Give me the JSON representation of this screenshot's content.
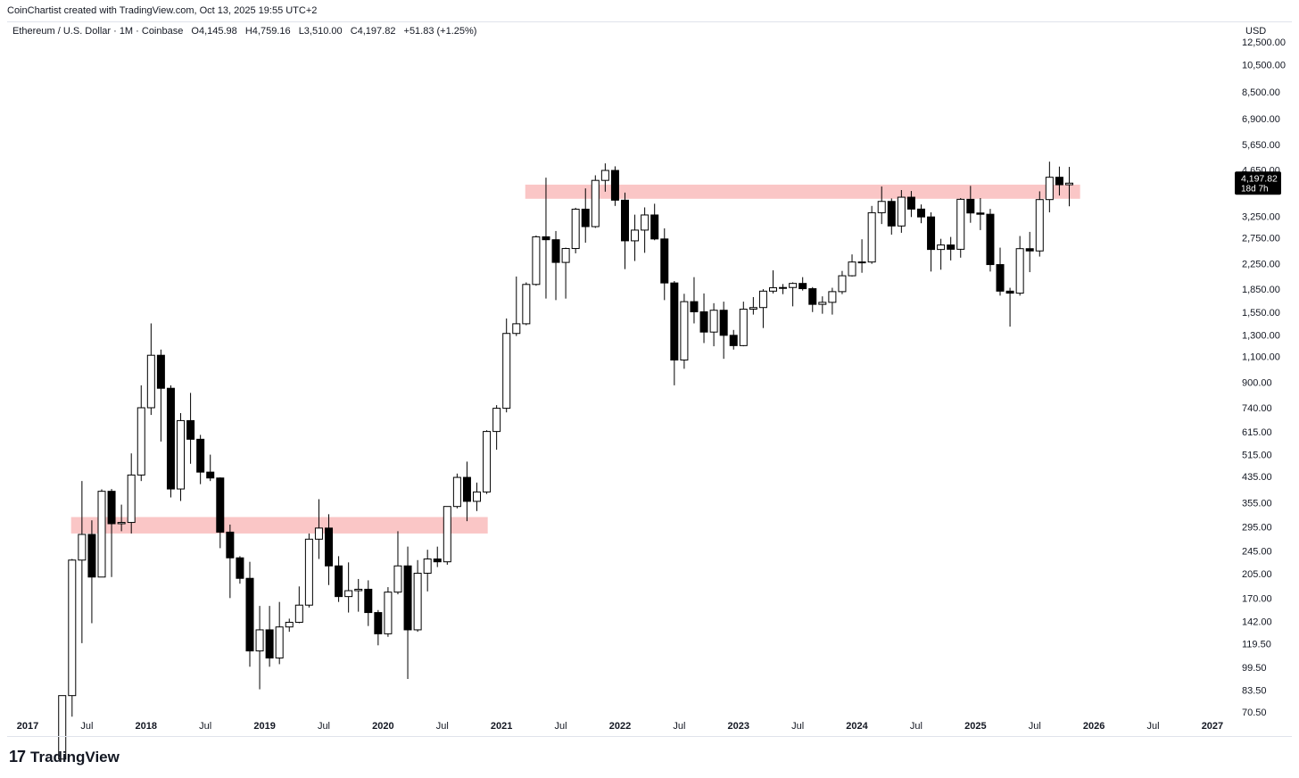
{
  "header": {
    "credit": "CoinChartist created with TradingView.com, Oct 13, 2025 19:55 UTC+2"
  },
  "symbol": {
    "name": "Ethereum / U.S. Dollar · 1M · Coinbase",
    "open": "O4,145.98",
    "high": "H4,759.16",
    "low": "L3,510.00",
    "close": "C4,197.82",
    "change": "+51.83 (+1.25%)"
  },
  "currency": "USD",
  "last_price": {
    "value": "4,197.82",
    "countdown": "18d 7h"
  },
  "footer": {
    "logo_mark": "17",
    "logo_text": "TradingView"
  },
  "colors": {
    "up_fill": "#ffffff",
    "down_fill": "#000000",
    "zone": "#f7a8a8",
    "label_bg": "#000000"
  },
  "chart_data": {
    "type": "candlestick",
    "interval": "1M",
    "y_scale": "log",
    "ylim": [
      68,
      14000
    ],
    "x_start": "2017-01",
    "x_end": "2027-02",
    "y_ticks": [
      "12,500.00",
      "10,500.00",
      "8,500.00",
      "6,900.00",
      "5,650.00",
      "4,650.00",
      "3,250.00",
      "2,750.00",
      "2,250.00",
      "1,850.00",
      "1,550.00",
      "1,300.00",
      "1,100.00",
      "900.00",
      "740.00",
      "615.00",
      "515.00",
      "435.00",
      "355.00",
      "295.00",
      "245.00",
      "205.00",
      "170.00",
      "142.00",
      "119.50",
      "99.50",
      "83.50",
      "70.50"
    ],
    "x_ticks": [
      {
        "label": "2017",
        "date": "2017-01",
        "bold": true
      },
      {
        "label": "Jul",
        "date": "2017-07",
        "bold": false
      },
      {
        "label": "2018",
        "date": "2018-01",
        "bold": true
      },
      {
        "label": "Jul",
        "date": "2018-07",
        "bold": false
      },
      {
        "label": "2019",
        "date": "2019-01",
        "bold": true
      },
      {
        "label": "Jul",
        "date": "2019-07",
        "bold": false
      },
      {
        "label": "2020",
        "date": "2020-01",
        "bold": true
      },
      {
        "label": "Jul",
        "date": "2020-07",
        "bold": false
      },
      {
        "label": "2021",
        "date": "2021-01",
        "bold": true
      },
      {
        "label": "Jul",
        "date": "2021-07",
        "bold": false
      },
      {
        "label": "2022",
        "date": "2022-01",
        "bold": true
      },
      {
        "label": "Jul",
        "date": "2022-07",
        "bold": false
      },
      {
        "label": "2023",
        "date": "2023-01",
        "bold": true
      },
      {
        "label": "Jul",
        "date": "2023-07",
        "bold": false
      },
      {
        "label": "2024",
        "date": "2024-01",
        "bold": true
      },
      {
        "label": "Jul",
        "date": "2024-07",
        "bold": false
      },
      {
        "label": "2025",
        "date": "2025-01",
        "bold": true
      },
      {
        "label": "Jul",
        "date": "2025-07",
        "bold": false
      },
      {
        "label": "2026",
        "date": "2026-01",
        "bold": true
      },
      {
        "label": "Jul",
        "date": "2026-07",
        "bold": false
      },
      {
        "label": "2027",
        "date": "2027-01",
        "bold": true
      }
    ],
    "zones": [
      {
        "from_date": "2017-06",
        "to_date": "2020-11",
        "low": 280,
        "high": 318
      },
      {
        "from_date": "2021-04",
        "to_date": "2025-11",
        "low": 3720,
        "high": 4150
      }
    ],
    "candles": [
      {
        "date": "2017-04",
        "o": 49,
        "h": 80,
        "l": 49,
        "c": 80
      },
      {
        "date": "2017-05",
        "o": 80,
        "h": 230,
        "l": 68,
        "c": 228
      },
      {
        "date": "2017-06",
        "o": 228,
        "h": 420,
        "l": 120,
        "c": 278
      },
      {
        "date": "2017-07",
        "o": 278,
        "h": 310,
        "l": 140,
        "c": 200
      },
      {
        "date": "2017-08",
        "o": 200,
        "h": 394,
        "l": 200,
        "c": 388
      },
      {
        "date": "2017-09",
        "o": 388,
        "h": 395,
        "l": 200,
        "c": 302
      },
      {
        "date": "2017-10",
        "o": 302,
        "h": 350,
        "l": 285,
        "c": 305
      },
      {
        "date": "2017-11",
        "o": 305,
        "h": 520,
        "l": 280,
        "c": 440
      },
      {
        "date": "2017-12",
        "o": 440,
        "h": 880,
        "l": 420,
        "c": 740
      },
      {
        "date": "2018-01",
        "o": 740,
        "h": 1420,
        "l": 700,
        "c": 1110
      },
      {
        "date": "2018-02",
        "o": 1110,
        "h": 1160,
        "l": 570,
        "c": 860
      },
      {
        "date": "2018-03",
        "o": 860,
        "h": 880,
        "l": 370,
        "c": 395
      },
      {
        "date": "2018-04",
        "o": 395,
        "h": 710,
        "l": 360,
        "c": 670
      },
      {
        "date": "2018-05",
        "o": 670,
        "h": 830,
        "l": 480,
        "c": 580
      },
      {
        "date": "2018-06",
        "o": 580,
        "h": 600,
        "l": 410,
        "c": 450
      },
      {
        "date": "2018-07",
        "o": 450,
        "h": 515,
        "l": 420,
        "c": 430
      },
      {
        "date": "2018-08",
        "o": 430,
        "h": 432,
        "l": 250,
        "c": 283
      },
      {
        "date": "2018-09",
        "o": 283,
        "h": 300,
        "l": 170,
        "c": 232
      },
      {
        "date": "2018-10",
        "o": 232,
        "h": 235,
        "l": 190,
        "c": 198
      },
      {
        "date": "2018-11",
        "o": 198,
        "h": 225,
        "l": 100,
        "c": 113
      },
      {
        "date": "2018-12",
        "o": 113,
        "h": 160,
        "l": 84,
        "c": 133
      },
      {
        "date": "2019-01",
        "o": 133,
        "h": 160,
        "l": 100,
        "c": 107
      },
      {
        "date": "2019-02",
        "o": 107,
        "h": 165,
        "l": 102,
        "c": 136
      },
      {
        "date": "2019-03",
        "o": 136,
        "h": 145,
        "l": 131,
        "c": 141
      },
      {
        "date": "2019-04",
        "o": 141,
        "h": 186,
        "l": 140,
        "c": 161
      },
      {
        "date": "2019-05",
        "o": 161,
        "h": 280,
        "l": 158,
        "c": 268
      },
      {
        "date": "2019-06",
        "o": 268,
        "h": 365,
        "l": 230,
        "c": 292
      },
      {
        "date": "2019-07",
        "o": 292,
        "h": 325,
        "l": 188,
        "c": 218
      },
      {
        "date": "2019-08",
        "o": 218,
        "h": 235,
        "l": 165,
        "c": 172
      },
      {
        "date": "2019-09",
        "o": 172,
        "h": 224,
        "l": 152,
        "c": 180
      },
      {
        "date": "2019-10",
        "o": 180,
        "h": 197,
        "l": 153,
        "c": 182
      },
      {
        "date": "2019-11",
        "o": 182,
        "h": 195,
        "l": 137,
        "c": 152
      },
      {
        "date": "2019-12",
        "o": 152,
        "h": 155,
        "l": 118,
        "c": 129
      },
      {
        "date": "2020-01",
        "o": 129,
        "h": 185,
        "l": 126,
        "c": 178
      },
      {
        "date": "2020-02",
        "o": 178,
        "h": 285,
        "l": 175,
        "c": 218
      },
      {
        "date": "2020-03",
        "o": 218,
        "h": 253,
        "l": 91,
        "c": 133
      },
      {
        "date": "2020-04",
        "o": 133,
        "h": 228,
        "l": 131,
        "c": 206
      },
      {
        "date": "2020-05",
        "o": 206,
        "h": 247,
        "l": 179,
        "c": 230
      },
      {
        "date": "2020-06",
        "o": 230,
        "h": 253,
        "l": 216,
        "c": 225
      },
      {
        "date": "2020-07",
        "o": 225,
        "h": 345,
        "l": 220,
        "c": 345
      },
      {
        "date": "2020-08",
        "o": 345,
        "h": 445,
        "l": 340,
        "c": 432
      },
      {
        "date": "2020-09",
        "o": 432,
        "h": 488,
        "l": 308,
        "c": 359
      },
      {
        "date": "2020-10",
        "o": 359,
        "h": 415,
        "l": 333,
        "c": 386
      },
      {
        "date": "2020-11",
        "o": 386,
        "h": 622,
        "l": 380,
        "c": 616
      },
      {
        "date": "2020-12",
        "o": 616,
        "h": 755,
        "l": 535,
        "c": 737
      },
      {
        "date": "2021-01",
        "o": 737,
        "h": 1475,
        "l": 714,
        "c": 1314
      },
      {
        "date": "2021-02",
        "o": 1314,
        "h": 2040,
        "l": 1288,
        "c": 1416
      },
      {
        "date": "2021-03",
        "o": 1416,
        "h": 1950,
        "l": 1400,
        "c": 1919
      },
      {
        "date": "2021-04",
        "o": 1919,
        "h": 2800,
        "l": 1900,
        "c": 2773
      },
      {
        "date": "2021-05",
        "o": 2773,
        "h": 4380,
        "l": 1720,
        "c": 2711
      },
      {
        "date": "2021-06",
        "o": 2711,
        "h": 2900,
        "l": 1700,
        "c": 2275
      },
      {
        "date": "2021-07",
        "o": 2275,
        "h": 2550,
        "l": 1720,
        "c": 2533
      },
      {
        "date": "2021-08",
        "o": 2533,
        "h": 3470,
        "l": 2440,
        "c": 3433
      },
      {
        "date": "2021-09",
        "o": 3433,
        "h": 4030,
        "l": 2650,
        "c": 3000
      },
      {
        "date": "2021-10",
        "o": 3000,
        "h": 4460,
        "l": 2970,
        "c": 4288
      },
      {
        "date": "2021-11",
        "o": 4288,
        "h": 4890,
        "l": 3930,
        "c": 4631
      },
      {
        "date": "2021-12",
        "o": 4631,
        "h": 4780,
        "l": 3520,
        "c": 3680
      },
      {
        "date": "2022-01",
        "o": 3680,
        "h": 3900,
        "l": 2160,
        "c": 2688
      },
      {
        "date": "2022-02",
        "o": 2688,
        "h": 3290,
        "l": 2300,
        "c": 2920
      },
      {
        "date": "2022-03",
        "o": 2920,
        "h": 3480,
        "l": 2450,
        "c": 3282
      },
      {
        "date": "2022-04",
        "o": 3282,
        "h": 3580,
        "l": 2700,
        "c": 2727
      },
      {
        "date": "2022-05",
        "o": 2727,
        "h": 2960,
        "l": 1700,
        "c": 1941
      },
      {
        "date": "2022-06",
        "o": 1941,
        "h": 1970,
        "l": 880,
        "c": 1070
      },
      {
        "date": "2022-07",
        "o": 1070,
        "h": 1785,
        "l": 1000,
        "c": 1680
      },
      {
        "date": "2022-08",
        "o": 1680,
        "h": 2030,
        "l": 1420,
        "c": 1553
      },
      {
        "date": "2022-09",
        "o": 1553,
        "h": 1790,
        "l": 1220,
        "c": 1328
      },
      {
        "date": "2022-10",
        "o": 1328,
        "h": 1660,
        "l": 1190,
        "c": 1572
      },
      {
        "date": "2022-11",
        "o": 1572,
        "h": 1680,
        "l": 1080,
        "c": 1295
      },
      {
        "date": "2022-12",
        "o": 1295,
        "h": 1350,
        "l": 1160,
        "c": 1196
      },
      {
        "date": "2023-01",
        "o": 1196,
        "h": 1680,
        "l": 1190,
        "c": 1585
      },
      {
        "date": "2023-02",
        "o": 1585,
        "h": 1740,
        "l": 1520,
        "c": 1605
      },
      {
        "date": "2023-03",
        "o": 1605,
        "h": 1850,
        "l": 1370,
        "c": 1822
      },
      {
        "date": "2023-04",
        "o": 1822,
        "h": 2140,
        "l": 1790,
        "c": 1870
      },
      {
        "date": "2023-05",
        "o": 1870,
        "h": 1925,
        "l": 1780,
        "c": 1874
      },
      {
        "date": "2023-06",
        "o": 1874,
        "h": 1950,
        "l": 1620,
        "c": 1934
      },
      {
        "date": "2023-07",
        "o": 1934,
        "h": 2030,
        "l": 1830,
        "c": 1857
      },
      {
        "date": "2023-08",
        "o": 1857,
        "h": 1880,
        "l": 1550,
        "c": 1645
      },
      {
        "date": "2023-09",
        "o": 1645,
        "h": 1750,
        "l": 1530,
        "c": 1671
      },
      {
        "date": "2023-10",
        "o": 1671,
        "h": 1870,
        "l": 1520,
        "c": 1815
      },
      {
        "date": "2023-11",
        "o": 1815,
        "h": 2130,
        "l": 1780,
        "c": 2052
      },
      {
        "date": "2023-12",
        "o": 2052,
        "h": 2420,
        "l": 2040,
        "c": 2282
      },
      {
        "date": "2024-01",
        "o": 2282,
        "h": 2720,
        "l": 2100,
        "c": 2283
      },
      {
        "date": "2024-02",
        "o": 2282,
        "h": 3520,
        "l": 2250,
        "c": 3340
      },
      {
        "date": "2024-03",
        "o": 3340,
        "h": 4090,
        "l": 3060,
        "c": 3645
      },
      {
        "date": "2024-04",
        "o": 3645,
        "h": 3730,
        "l": 2820,
        "c": 3015
      },
      {
        "date": "2024-05",
        "o": 3015,
        "h": 3980,
        "l": 2860,
        "c": 3765
      },
      {
        "date": "2024-06",
        "o": 3765,
        "h": 3950,
        "l": 3230,
        "c": 3435
      },
      {
        "date": "2024-07",
        "o": 3435,
        "h": 3560,
        "l": 3080,
        "c": 3233
      },
      {
        "date": "2024-08",
        "o": 3233,
        "h": 3350,
        "l": 2120,
        "c": 2514
      },
      {
        "date": "2024-09",
        "o": 2514,
        "h": 2730,
        "l": 2150,
        "c": 2603
      },
      {
        "date": "2024-10",
        "o": 2603,
        "h": 2770,
        "l": 2310,
        "c": 2518
      },
      {
        "date": "2024-11",
        "o": 2518,
        "h": 3740,
        "l": 2360,
        "c": 3705
      },
      {
        "date": "2024-12",
        "o": 3705,
        "h": 4110,
        "l": 3090,
        "c": 3333
      },
      {
        "date": "2025-01",
        "o": 3333,
        "h": 3740,
        "l": 2920,
        "c": 3300
      },
      {
        "date": "2025-02",
        "o": 3300,
        "h": 3440,
        "l": 2120,
        "c": 2237
      },
      {
        "date": "2025-03",
        "o": 2237,
        "h": 2550,
        "l": 1760,
        "c": 1822
      },
      {
        "date": "2025-04",
        "o": 1822,
        "h": 1870,
        "l": 1385,
        "c": 1794
      },
      {
        "date": "2025-05",
        "o": 1794,
        "h": 2790,
        "l": 1760,
        "c": 2530
      },
      {
        "date": "2025-06",
        "o": 2530,
        "h": 2880,
        "l": 2110,
        "c": 2486
      },
      {
        "date": "2025-07",
        "o": 2486,
        "h": 3940,
        "l": 2380,
        "c": 3697
      },
      {
        "date": "2025-08",
        "o": 3697,
        "h": 4956,
        "l": 3350,
        "c": 4393
      },
      {
        "date": "2025-09",
        "o": 4393,
        "h": 4770,
        "l": 3815,
        "c": 4145.98
      },
      {
        "date": "2025-10",
        "o": 4145.98,
        "h": 4759.16,
        "l": 3510,
        "c": 4197.82
      }
    ]
  }
}
